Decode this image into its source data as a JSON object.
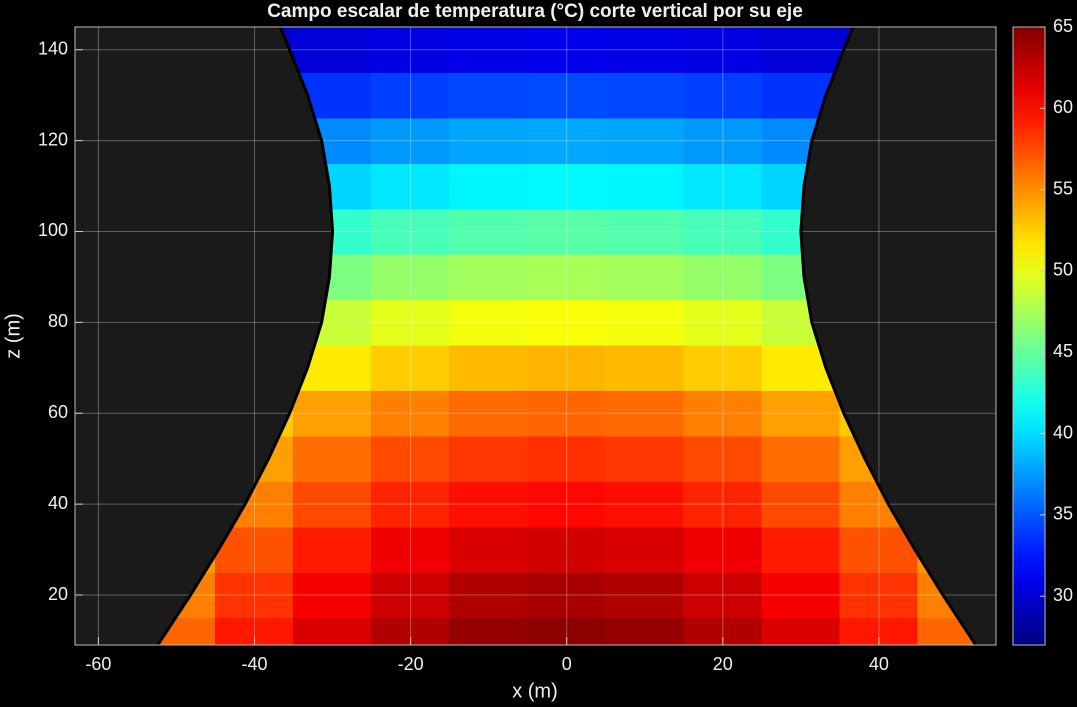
{
  "chart_data": {
    "type": "contour",
    "title": "Campo escalar de temperatura (°C) corte vertical por su eje",
    "x_label": "x (m)",
    "y_label": "z (m)",
    "xlim": [
      -63,
      55
    ],
    "ylim": [
      9,
      145
    ],
    "xticks": [
      -60,
      -40,
      -20,
      0,
      20,
      40
    ],
    "yticks": [
      20,
      40,
      60,
      80,
      100,
      120,
      140
    ],
    "grid": true,
    "x": [
      -50,
      -40,
      -30,
      -20,
      -10,
      0,
      10,
      20,
      30,
      40,
      50
    ],
    "z": [
      10,
      20,
      30,
      40,
      50,
      60,
      70,
      80,
      90,
      100,
      110,
      120,
      130,
      140
    ],
    "values": [
      [
        56.5,
        59.4,
        61.6,
        63.2,
        64.2,
        64.5,
        64.2,
        63.2,
        61.6,
        59.4,
        56.5
      ],
      [
        55.5,
        58.4,
        60.6,
        62.2,
        63.2,
        63.5,
        63.2,
        62.2,
        60.6,
        58.4,
        55.5
      ],
      [
        54.5,
        57.2,
        59.3,
        60.8,
        61.7,
        62,
        61.7,
        60.8,
        59.3,
        57.2,
        54.5
      ],
      [
        53,
        55.5,
        57.5,
        58.9,
        59.7,
        60,
        59.7,
        58.9,
        57.5,
        55.5,
        53
      ],
      [
        52,
        54.3,
        56.2,
        57.5,
        58.2,
        58.5,
        58.2,
        57.5,
        56.2,
        54.3,
        52
      ],
      [
        50.5,
        52.7,
        54.3,
        55.5,
        56.3,
        56.5,
        56.3,
        55.5,
        54.3,
        52.7,
        50.5
      ],
      [
        48,
        50,
        51.5,
        52.6,
        53.3,
        53.5,
        53.3,
        52.6,
        51.5,
        50,
        48
      ],
      [
        45.5,
        47.3,
        48.7,
        49.7,
        50.3,
        50.5,
        50.3,
        49.7,
        48.7,
        47.3,
        45.5
      ],
      [
        43,
        44.6,
        45.9,
        46.8,
        47.3,
        47.5,
        47.3,
        46.8,
        45.9,
        44.6,
        43
      ],
      [
        40.5,
        41.9,
        43.1,
        43.9,
        44.3,
        44.5,
        44.3,
        43.9,
        43.1,
        41.9,
        40.5
      ],
      [
        37.5,
        38.8,
        39.7,
        40.4,
        40.9,
        41,
        40.9,
        40.4,
        39.7,
        38.8,
        37.5
      ],
      [
        35,
        36.1,
        36.9,
        37.5,
        37.9,
        38,
        37.9,
        37.5,
        36.9,
        36.1,
        35
      ],
      [
        32,
        32.9,
        33.6,
        34.1,
        34.4,
        34.5,
        34.4,
        34.1,
        33.6,
        32.9,
        32
      ],
      [
        29,
        29.7,
        30.3,
        30.7,
        30.9,
        31,
        30.9,
        30.7,
        30.3,
        29.7,
        29
      ]
    ],
    "tower_z": [
      9,
      20,
      30,
      40,
      50,
      60,
      70,
      80,
      90,
      100,
      110,
      120,
      130,
      140,
      145
    ],
    "tower_radius": [
      52.4,
      48.2,
      44.6,
      41.2,
      38.2,
      35.5,
      33.2,
      31.4,
      30.4,
      30,
      30.4,
      31.4,
      33.2,
      35.5,
      36.7
    ],
    "colormap": "jet",
    "clim": [
      27,
      65
    ],
    "colorbar_ticks": [
      30,
      35,
      40,
      45,
      50,
      55,
      60,
      65
    ]
  }
}
